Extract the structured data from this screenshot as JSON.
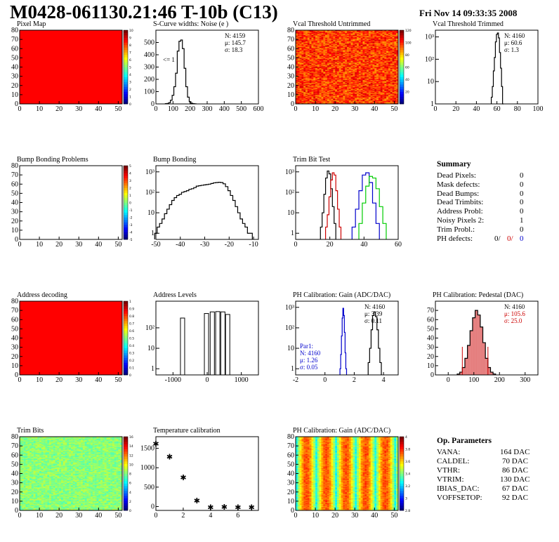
{
  "header": {
    "title": "M0428-061130.21:46 T-10b (C13)",
    "date": "Fri Nov 14 09:33:35 2008"
  },
  "colors": {
    "red_map": "#ff0000",
    "ph_red": "#cc0000",
    "par1_blue": "#0000cc",
    "trim_black": "#000000",
    "trim_red": "#cc0000",
    "trim_blue": "#0000cc",
    "trim_green": "#00cc00"
  },
  "panels": [
    {
      "id": "pixel-map",
      "title": "Pixel Map"
    },
    {
      "id": "scurve",
      "title": "S-Curve widths: Noise (e )",
      "note": "<= 1",
      "stats": [
        "N: 4159",
        "μ: 145.7",
        "σ: 18.3"
      ]
    },
    {
      "id": "vcal-untrimmed",
      "title": "Vcal Threshold Untrimmed"
    },
    {
      "id": "vcal-trimmed",
      "title": "Vcal Threshold Trimmed",
      "stats": [
        "N: 4160",
        "μ: 60.6",
        "σ:  1.3"
      ]
    },
    {
      "id": "bump-problems",
      "title": "Bump Bonding Problems"
    },
    {
      "id": "bump-bonding",
      "title": "Bump Bonding"
    },
    {
      "id": "trim-bit-test",
      "title": "Trim Bit Test"
    },
    {
      "id": "address-decoding",
      "title": "Address decoding"
    },
    {
      "id": "address-levels",
      "title": "Address Levels"
    },
    {
      "id": "ph-gain",
      "title": "PH Calibration: Gain (ADC/DAC)",
      "stats": [
        "N: 4160",
        "μ: 3.39",
        "σ: 0.11"
      ],
      "par1": [
        "Par1:",
        "N: 4160",
        "μ: 1.26",
        "σ: 0.05"
      ]
    },
    {
      "id": "ph-pedestal",
      "title": "PH Calibration: Pedestal (DAC)",
      "stats": [
        "N: 4160",
        "μ: 105.6",
        "σ: 25.0"
      ]
    },
    {
      "id": "trim-bits",
      "title": "Trim Bits"
    },
    {
      "id": "temperature",
      "title": "Temperature calibration"
    },
    {
      "id": "ph-gain-map",
      "title": "PH Calibration: Gain (ADC/DAC)"
    }
  ],
  "summary": {
    "heading": "Summary",
    "rows": [
      {
        "label": "Dead Pixels:",
        "value": "0"
      },
      {
        "label": "Mask defects:",
        "value": "0"
      },
      {
        "label": "Dead Bumps:",
        "value": "0"
      },
      {
        "label": "Dead Trimbits:",
        "value": "0"
      },
      {
        "label": "Address Probl:",
        "value": "0"
      },
      {
        "label": "Noisy Pixels 2:",
        "value": "1"
      },
      {
        "label": "Trim Probl.:",
        "value": "0"
      }
    ],
    "ph_label": "PH defects:",
    "ph_values": [
      "0/",
      "0/",
      "0"
    ]
  },
  "op_params": {
    "heading": "Op. Parameters",
    "rows": [
      {
        "label": "VANA:",
        "value": "164 DAC"
      },
      {
        "label": "CALDEL:",
        "value": "70 DAC"
      },
      {
        "label": "VTHR:",
        "value": "86 DAC"
      },
      {
        "label": "VTRIM:",
        "value": "130 DAC"
      },
      {
        "label": "IBIAS_DAC:",
        "value": "67 DAC"
      },
      {
        "label": "VOFFSETOP:",
        "value": "92 DAC"
      }
    ]
  },
  "chart_data": [
    {
      "type": "heatmap",
      "name": "Pixel Map",
      "xlim": [
        0,
        52
      ],
      "ylim": [
        0,
        80
      ],
      "xticks": [
        0,
        10,
        20,
        30,
        40,
        50
      ],
      "yticks": [
        0,
        10,
        20,
        30,
        40,
        50,
        60,
        70,
        80
      ],
      "uniform_value": 10,
      "zlim": [
        0,
        10
      ],
      "zticks": [
        0,
        1,
        2,
        3,
        4,
        5,
        6,
        7,
        8,
        9,
        10
      ]
    },
    {
      "type": "bar",
      "name": "S-Curve widths: Noise",
      "xlim": [
        0,
        600
      ],
      "ylim": [
        0,
        600
      ],
      "xticks": [
        0,
        100,
        200,
        300,
        400,
        500,
        600
      ],
      "yticks": [
        0,
        100,
        200,
        300,
        400,
        500
      ],
      "x": [
        60,
        70,
        80,
        90,
        100,
        110,
        120,
        130,
        140,
        150,
        160,
        170,
        180,
        190,
        200,
        210,
        220,
        230
      ],
      "values": [
        2,
        4,
        10,
        30,
        70,
        140,
        250,
        430,
        510,
        520,
        450,
        290,
        140,
        55,
        18,
        6,
        2,
        1
      ]
    },
    {
      "type": "heatmap",
      "name": "Vcal Threshold Untrimmed",
      "xlim": [
        0,
        52
      ],
      "ylim": [
        0,
        80
      ],
      "xticks": [
        0,
        10,
        20,
        30,
        40,
        50
      ],
      "yticks": [
        0,
        10,
        20,
        30,
        40,
        50,
        60,
        70,
        80
      ],
      "zlim": [
        0,
        120
      ],
      "zticks": [
        20,
        40,
        60,
        80,
        100,
        120
      ],
      "typical_range": [
        80,
        110
      ]
    },
    {
      "type": "bar",
      "name": "Vcal Threshold Trimmed",
      "log_y": true,
      "xlim": [
        0,
        100
      ],
      "ylim": [
        1,
        2000
      ],
      "xticks": [
        0,
        20,
        40,
        60,
        80,
        100
      ],
      "yticks": [
        "1",
        "10",
        "10²",
        "10³"
      ],
      "x": [
        55,
        56,
        57,
        58,
        59,
        60,
        61,
        62,
        63,
        64,
        65,
        66
      ],
      "values": [
        2,
        6,
        30,
        120,
        600,
        1300,
        1500,
        900,
        200,
        40,
        6,
        1
      ]
    },
    {
      "type": "heatmap",
      "name": "Bump Bonding Problems",
      "xlim": [
        0,
        52
      ],
      "ylim": [
        0,
        80
      ],
      "xticks": [
        0,
        10,
        20,
        30,
        40,
        50
      ],
      "yticks": [
        0,
        10,
        20,
        30,
        40,
        50,
        60,
        70,
        80
      ],
      "empty": true,
      "zlim": [
        -5,
        5
      ],
      "zticks": [
        -5,
        -4,
        -3,
        -2,
        -1,
        0,
        1,
        2,
        3,
        4,
        5
      ]
    },
    {
      "type": "bar",
      "name": "Bump Bonding",
      "log_y": true,
      "xlim": [
        -50,
        -8
      ],
      "ylim": [
        0.5,
        2000
      ],
      "xticks": [
        -50,
        -40,
        -30,
        -20,
        -10
      ],
      "yticks": [
        "1",
        "10",
        "10²",
        "10³"
      ],
      "x": [
        -50,
        -49,
        -48,
        -47,
        -46,
        -45,
        -44,
        -43,
        -42,
        -41,
        -40,
        -39,
        -38,
        -37,
        -36,
        -35,
        -34,
        -33,
        -32,
        -31,
        -30,
        -29,
        -28,
        -27,
        -26,
        -25,
        -24,
        -23,
        -22,
        -21,
        -20,
        -19,
        -18,
        -17,
        -16,
        -15,
        -14,
        -13,
        -12,
        -11
      ],
      "values": [
        1,
        2,
        3,
        5,
        9,
        15,
        25,
        40,
        55,
        70,
        80,
        100,
        110,
        120,
        140,
        150,
        170,
        200,
        210,
        220,
        230,
        240,
        250,
        270,
        290,
        300,
        310,
        300,
        260,
        190,
        120,
        70,
        40,
        20,
        10,
        5,
        3,
        2,
        1,
        1
      ]
    },
    {
      "type": "bar",
      "name": "Trim Bit Test",
      "log_y": true,
      "xlim": [
        0,
        60
      ],
      "ylim": [
        0.5,
        2000
      ],
      "xticks": [
        0,
        20,
        40,
        60
      ],
      "yticks": [
        "1",
        "10",
        "10²",
        "10³"
      ],
      "series": [
        {
          "color": "black",
          "x": [
            15,
            16,
            17,
            18,
            19,
            20,
            21,
            22,
            23
          ],
          "values": [
            2,
            10,
            80,
            500,
            1100,
            800,
            150,
            20,
            3
          ]
        },
        {
          "color": "red",
          "x": [
            18,
            19,
            20,
            21,
            22,
            23,
            24,
            25,
            26
          ],
          "values": [
            2,
            8,
            60,
            400,
            900,
            700,
            120,
            15,
            2
          ]
        },
        {
          "color": "blue",
          "x": [
            34,
            36,
            38,
            40,
            42,
            44,
            46,
            48
          ],
          "values": [
            2,
            15,
            120,
            700,
            900,
            300,
            30,
            3
          ]
        },
        {
          "color": "green",
          "x": [
            38,
            40,
            42,
            44,
            46,
            48,
            50,
            52
          ],
          "values": [
            3,
            30,
            200,
            600,
            500,
            150,
            20,
            3
          ]
        }
      ]
    },
    {
      "type": "heatmap",
      "name": "Address decoding",
      "xlim": [
        0,
        52
      ],
      "ylim": [
        0,
        80
      ],
      "xticks": [
        0,
        10,
        20,
        30,
        40,
        50
      ],
      "yticks": [
        0,
        10,
        20,
        30,
        40,
        50,
        60,
        70,
        80
      ],
      "uniform_value": 1,
      "zlim": [
        0,
        1
      ],
      "zticks": [
        0,
        0.1,
        0.2,
        0.3,
        0.4,
        0.5,
        0.6,
        0.7,
        0.8,
        0.9,
        1
      ]
    },
    {
      "type": "bar",
      "name": "Address Levels",
      "log_y": true,
      "xlim": [
        -1500,
        1500
      ],
      "ylim": [
        0.5,
        2000
      ],
      "xticks": [
        -1000,
        0,
        1000
      ],
      "yticks": [
        "1",
        "10",
        "10²"
      ],
      "x": [
        -720,
        -20,
        150,
        310,
        460,
        600
      ],
      "values": [
        300,
        500,
        600,
        620,
        600,
        450
      ]
    },
    {
      "type": "bar",
      "name": "PH Calibration: Gain",
      "log_y": true,
      "xlim": [
        -2,
        5
      ],
      "ylim": [
        0.5,
        2000
      ],
      "xticks": [
        -2,
        0,
        2,
        4
      ],
      "yticks": [
        "1",
        "10",
        "10²",
        "10³"
      ],
      "series": [
        {
          "name": "Par1",
          "color": "blue",
          "x": [
            1.05,
            1.1,
            1.15,
            1.2,
            1.25,
            1.3,
            1.35,
            1.4,
            1.45
          ],
          "values": [
            1,
            5,
            40,
            300,
            900,
            400,
            60,
            6,
            1
          ]
        },
        {
          "color": "black",
          "x": [
            3.0,
            3.1,
            3.2,
            3.3,
            3.4,
            3.5,
            3.6,
            3.7,
            3.8
          ],
          "values": [
            2,
            10,
            80,
            400,
            600,
            350,
            80,
            10,
            2
          ]
        }
      ]
    },
    {
      "type": "bar",
      "name": "PH Calibration: Pedestal",
      "xlim": [
        -50,
        350
      ],
      "ylim": [
        0,
        80
      ],
      "xticks": [
        0,
        100,
        200,
        300
      ],
      "yticks": [
        0,
        10,
        20,
        30,
        40,
        50,
        60,
        70
      ],
      "x": [
        40,
        50,
        60,
        70,
        80,
        90,
        100,
        110,
        120,
        130,
        140,
        150,
        160,
        170,
        180
      ],
      "values": [
        1,
        3,
        8,
        18,
        32,
        48,
        62,
        70,
        65,
        52,
        35,
        18,
        8,
        3,
        1
      ],
      "markers": [
        55,
        155
      ]
    },
    {
      "type": "heatmap",
      "name": "Trim Bits",
      "xlim": [
        0,
        52
      ],
      "ylim": [
        0,
        80
      ],
      "xticks": [
        0,
        10,
        20,
        30,
        40,
        50
      ],
      "yticks": [
        0,
        10,
        20,
        30,
        40,
        50,
        60,
        70,
        80
      ],
      "zlim": [
        0,
        16
      ],
      "zticks": [
        0,
        2,
        4,
        6,
        8,
        10,
        12,
        14,
        16
      ],
      "typical_range": [
        6,
        9
      ]
    },
    {
      "type": "scatter",
      "name": "Temperature calibration",
      "xlim": [
        0,
        7.5
      ],
      "ylim": [
        -100,
        1800
      ],
      "xticks": [
        0,
        2,
        4,
        6
      ],
      "yticks": [
        0,
        500,
        1000,
        1500
      ],
      "x": [
        0,
        1,
        2,
        3,
        4,
        5,
        6,
        7
      ],
      "values": [
        1620,
        1280,
        750,
        150,
        -20,
        -10,
        -20,
        -20
      ]
    },
    {
      "type": "heatmap",
      "name": "PH Calibration: Gain map",
      "xlim": [
        0,
        52
      ],
      "ylim": [
        0,
        80
      ],
      "xticks": [
        0,
        10,
        20,
        30,
        40,
        50
      ],
      "yticks": [
        0,
        10,
        20,
        30,
        40,
        50,
        60,
        70,
        80
      ],
      "zlim": [
        2.8,
        4
      ],
      "zticks": [
        2.8,
        3,
        3.2,
        3.4,
        3.6,
        3.8,
        4
      ]
    }
  ]
}
